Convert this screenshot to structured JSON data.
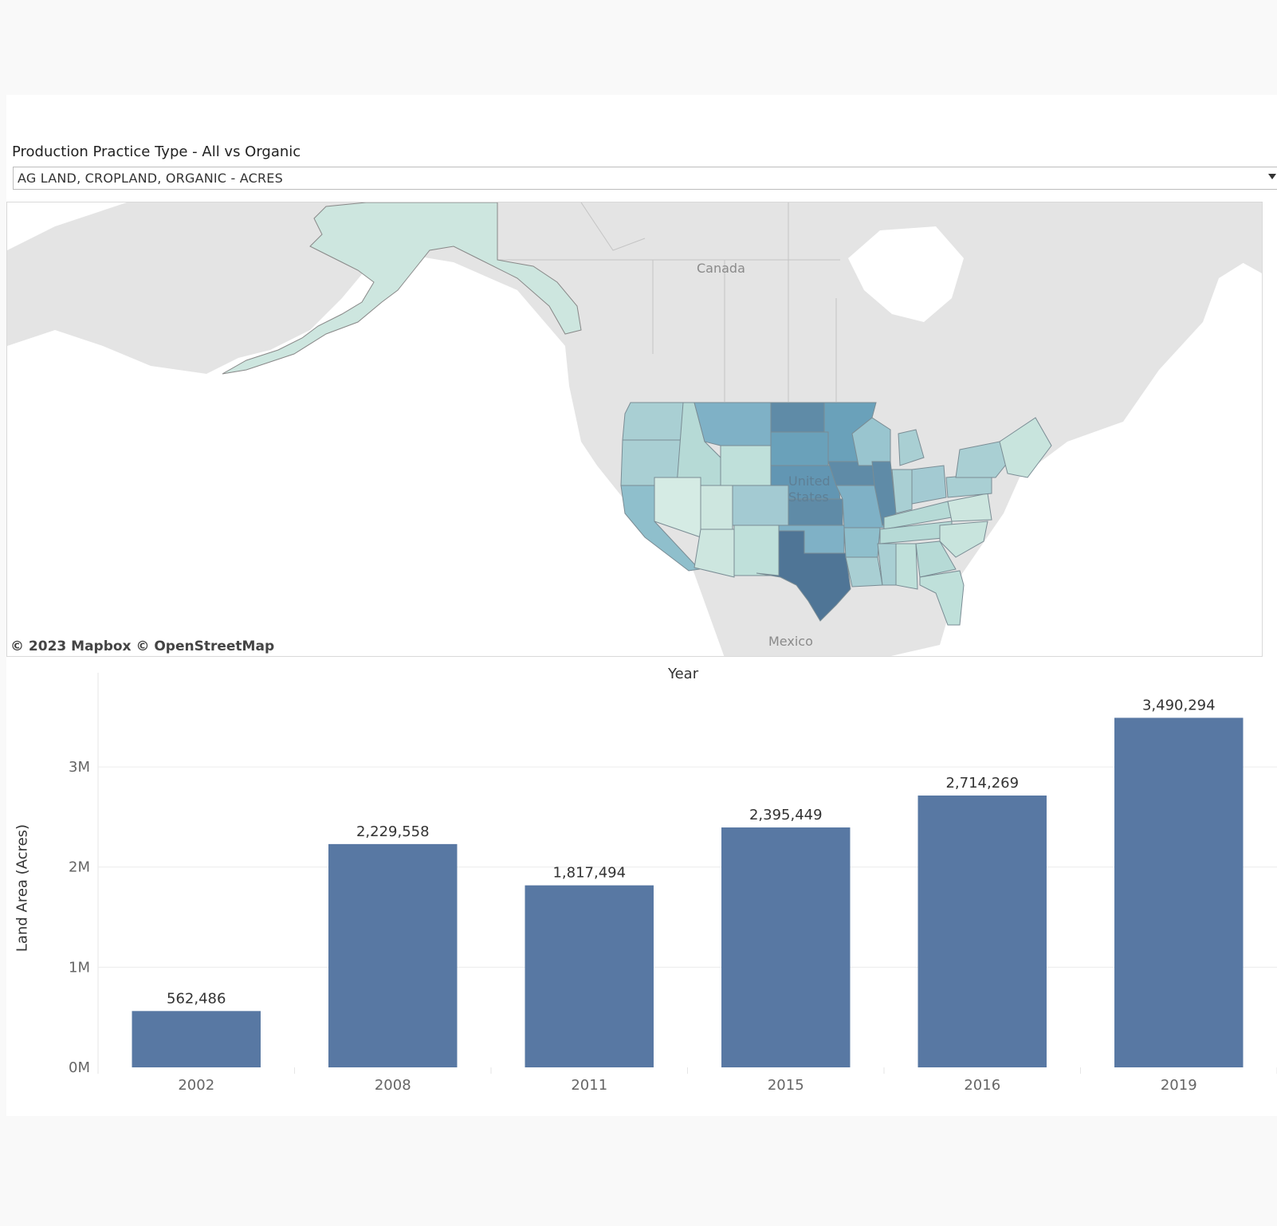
{
  "filter": {
    "title": "Production Practice Type - All vs Organic",
    "selected": "AG LAND, CROPLAND, ORGANIC - ACRES"
  },
  "map": {
    "labels": {
      "canada": "Canada",
      "united_states": "United States",
      "mexico": "Mexico"
    },
    "attribution": "© 2023 Mapbox  © OpenStreetMap",
    "colors": {
      "land": "#e4e4e4",
      "water": "#ffffff",
      "light": "#cde6df",
      "mid": "#8fbfcc",
      "dark": "#5b7f9e"
    }
  },
  "chart_data": {
    "type": "bar",
    "title": "",
    "xlabel": "Year",
    "ylabel": "Land Area (Acres)",
    "categories": [
      "2002",
      "2008",
      "2011",
      "2015",
      "2016",
      "2019"
    ],
    "values": [
      562486,
      2229558,
      1817494,
      2395449,
      2714269,
      3490294
    ],
    "value_labels": [
      "562,486",
      "2,229,558",
      "1,817,494",
      "2,395,449",
      "2,714,269",
      "3,490,294"
    ],
    "y_ticks": [
      0,
      1000000,
      2000000,
      3000000
    ],
    "y_tick_labels": [
      "0M",
      "1M",
      "2M",
      "3M"
    ],
    "ylim": [
      0,
      3900000
    ],
    "grid": true,
    "bar_color": "#5878a3"
  }
}
